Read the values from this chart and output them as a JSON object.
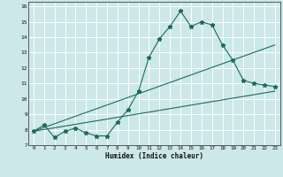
{
  "xlabel": "Humidex (Indice chaleur)",
  "bg_color": "#cce8e8",
  "grid_color": "#ffffff",
  "line_color": "#1a6b5a",
  "xlim": [
    -0.5,
    23.5
  ],
  "ylim": [
    7,
    16.3
  ],
  "xticks": [
    0,
    1,
    2,
    3,
    4,
    5,
    6,
    7,
    8,
    9,
    10,
    11,
    12,
    13,
    14,
    15,
    16,
    17,
    18,
    19,
    20,
    21,
    22,
    23
  ],
  "yticks": [
    7,
    8,
    9,
    10,
    11,
    12,
    13,
    14,
    15,
    16
  ],
  "line1_x": [
    0,
    1,
    2,
    3,
    4,
    5,
    6,
    7,
    8,
    9,
    10,
    11,
    12,
    13,
    14,
    15,
    16,
    17,
    18,
    19,
    20,
    21,
    22,
    23
  ],
  "line1_y": [
    7.9,
    8.3,
    7.5,
    7.9,
    8.1,
    7.8,
    7.6,
    7.6,
    8.5,
    9.3,
    10.5,
    12.7,
    13.9,
    14.7,
    15.7,
    14.7,
    15.0,
    14.8,
    13.5,
    12.5,
    11.2,
    11.0,
    10.9,
    10.8
  ],
  "line2_x": [
    0,
    23
  ],
  "line2_y": [
    7.9,
    10.5
  ],
  "line3_x": [
    0,
    23
  ],
  "line3_y": [
    7.9,
    13.5
  ],
  "marker": "*",
  "markersize": 3.5,
  "linewidth": 0.8
}
